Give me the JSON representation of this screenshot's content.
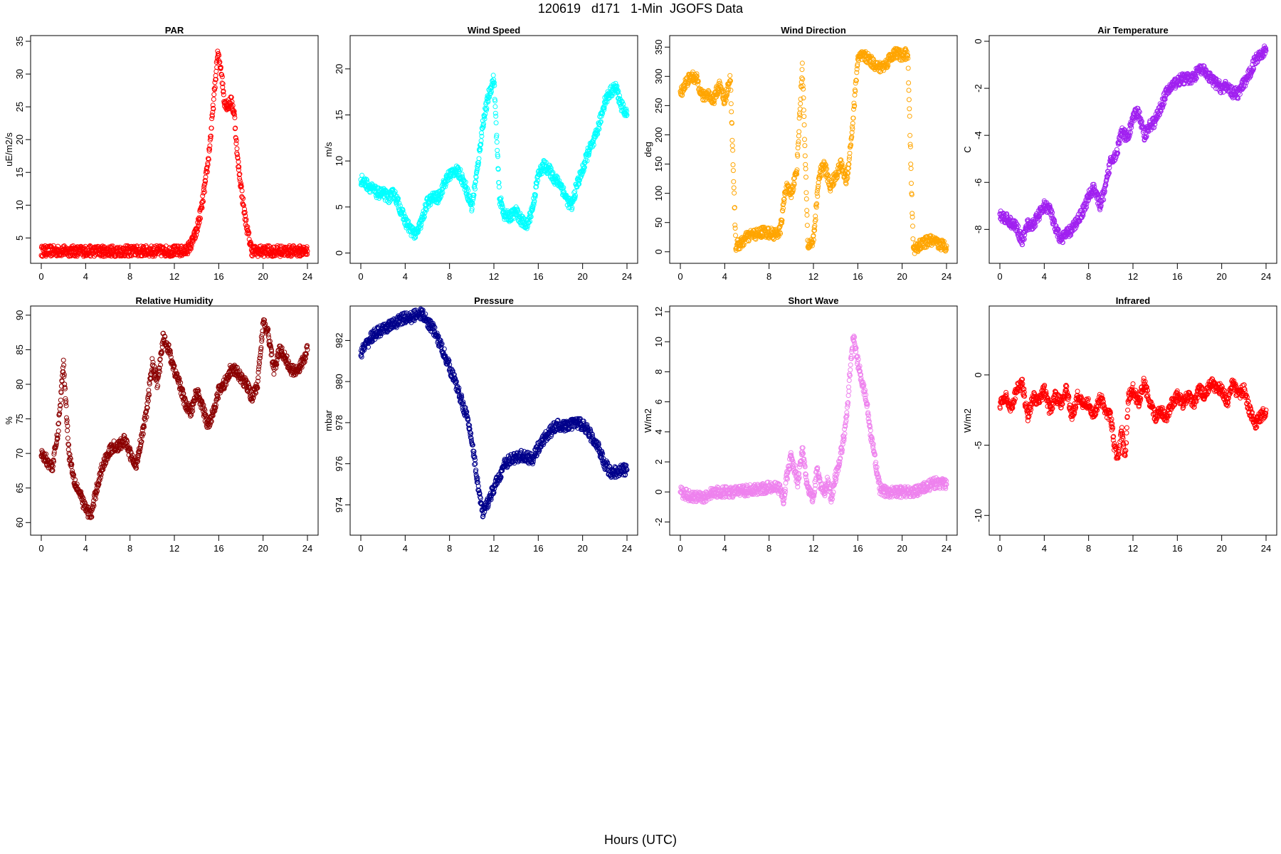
{
  "header": {
    "title": "120619   d171   1-Min  JGOFS Data"
  },
  "footer": {
    "xlabel": "Hours (UTC)"
  },
  "chart_data": [
    {
      "type": "scatter",
      "title": "PAR",
      "xlabel": "",
      "ylabel": "uE/m2/s",
      "color": "#ff0000",
      "xlim": [
        0,
        24
      ],
      "ylim": [
        2,
        35
      ],
      "xticks": [
        0,
        4,
        8,
        12,
        16,
        20,
        24
      ],
      "yticks": [
        5,
        10,
        15,
        20,
        25,
        30,
        35
      ],
      "x": [
        0,
        1,
        2,
        3,
        4,
        5,
        6,
        7,
        8,
        9,
        10,
        11,
        12,
        13,
        13.5,
        14,
        14.5,
        15,
        15.3,
        15.6,
        15.9,
        16.2,
        16.5,
        16.8,
        17.1,
        17.4,
        17.7,
        18,
        18.3,
        18.6,
        19,
        20,
        21,
        22,
        23,
        24
      ],
      "y": [
        3,
        3,
        3,
        3,
        3,
        3,
        3,
        3,
        3,
        3,
        3,
        3,
        3,
        3,
        4,
        6,
        10,
        16,
        21,
        27,
        33,
        31,
        26,
        25,
        26,
        24,
        17,
        13,
        9,
        6,
        3,
        3,
        3,
        3,
        3,
        3
      ]
    },
    {
      "type": "scatter",
      "title": "Wind Speed",
      "xlabel": "",
      "ylabel": "m/s",
      "color": "#00ffff",
      "xlim": [
        0,
        24
      ],
      "ylim": [
        -0.5,
        23
      ],
      "xticks": [
        0,
        4,
        8,
        12,
        16,
        20,
        24
      ],
      "yticks": [
        0,
        5,
        10,
        15,
        20
      ],
      "x": [
        0,
        0.5,
        1,
        1.5,
        2,
        2.5,
        3,
        3.5,
        4,
        4.5,
        5,
        5.5,
        6,
        6.5,
        7,
        7.5,
        8,
        8.5,
        9,
        9.5,
        10,
        10.5,
        11,
        11.5,
        12,
        12.5,
        13,
        13.5,
        14,
        14.5,
        15,
        15.5,
        16,
        16.5,
        17,
        17.5,
        18,
        18.5,
        19,
        19.5,
        20,
        20.5,
        21,
        21.5,
        22,
        22.5,
        23,
        23.5,
        24
      ],
      "y": [
        8,
        7.5,
        7,
        6.5,
        6.5,
        6,
        6.5,
        5,
        3.5,
        2.5,
        2,
        3.5,
        5.5,
        6,
        6,
        7.5,
        8.5,
        9,
        8.5,
        7,
        5,
        9,
        14,
        17,
        19,
        6,
        4,
        4,
        4.5,
        3.5,
        3,
        5,
        8.5,
        9.5,
        9,
        8,
        7.5,
        6,
        5,
        7.5,
        9,
        11,
        12,
        14,
        16.5,
        17.5,
        18,
        16,
        15
      ]
    },
    {
      "type": "scatter",
      "title": "Wind Direction",
      "xlabel": "",
      "ylabel": "deg",
      "color": "#ffa500",
      "xlim": [
        0,
        24
      ],
      "ylim": [
        -10,
        360
      ],
      "xticks": [
        0,
        4,
        8,
        12,
        16,
        20,
        24
      ],
      "yticks": [
        0,
        50,
        100,
        150,
        200,
        250,
        300,
        350
      ],
      "x": [
        0,
        0.5,
        1,
        1.5,
        2,
        2.5,
        3,
        3.5,
        4,
        4.5,
        5,
        5.5,
        6,
        6.5,
        7,
        7.5,
        8,
        8.5,
        9,
        9.5,
        10,
        10.5,
        11,
        11.5,
        12,
        12.5,
        13,
        13.5,
        14,
        14.5,
        15,
        15.5,
        16,
        16.5,
        17,
        17.5,
        18,
        18.5,
        19,
        19.5,
        20,
        20.5,
        21,
        21.5,
        22,
        22.5,
        23,
        23.5,
        24
      ],
      "y": [
        270,
        290,
        300,
        295,
        265,
        270,
        260,
        285,
        255,
        300,
        10,
        15,
        25,
        30,
        30,
        35,
        32,
        30,
        35,
        110,
        100,
        140,
        320,
        10,
        20,
        130,
        150,
        110,
        130,
        150,
        120,
        210,
        330,
        335,
        330,
        320,
        315,
        320,
        335,
        340,
        335,
        340,
        5,
        10,
        15,
        20,
        15,
        12,
        10
      ]
    },
    {
      "type": "scatter",
      "title": "Air Temperature",
      "xlabel": "",
      "ylabel": "C",
      "color": "#a020f0",
      "xlim": [
        0,
        24
      ],
      "ylim": [
        -9.2,
        0
      ],
      "xticks": [
        0,
        4,
        8,
        12,
        16,
        20,
        24
      ],
      "yticks": [
        0,
        -2,
        -4,
        -6,
        -8
      ],
      "x": [
        0,
        0.5,
        1,
        1.5,
        2,
        2.5,
        3,
        3.5,
        4,
        4.5,
        5,
        5.5,
        6,
        6.5,
        7,
        7.5,
        8,
        8.5,
        9,
        9.5,
        10,
        10.5,
        11,
        11.5,
        12,
        12.5,
        13,
        13.5,
        14,
        14.5,
        15,
        15.5,
        16,
        16.5,
        17,
        17.5,
        18,
        18.5,
        19,
        19.5,
        20,
        20.5,
        21,
        21.5,
        22,
        22.5,
        23,
        23.5,
        24
      ],
      "y": [
        -7.4,
        -7.5,
        -7.7,
        -7.9,
        -8.5,
        -7.8,
        -7.8,
        -7.4,
        -7.0,
        -7.1,
        -8.0,
        -8.4,
        -8.2,
        -8.0,
        -7.6,
        -7.2,
        -6.6,
        -6.2,
        -7.0,
        -6.3,
        -5.0,
        -4.8,
        -3.8,
        -4.2,
        -3.2,
        -3.0,
        -4.0,
        -3.6,
        -3.4,
        -2.8,
        -2.2,
        -1.9,
        -1.7,
        -1.6,
        -1.6,
        -1.5,
        -1.2,
        -1.3,
        -1.6,
        -1.8,
        -2.0,
        -1.9,
        -2.2,
        -2.2,
        -1.8,
        -1.4,
        -0.8,
        -0.5,
        -0.4
      ]
    },
    {
      "type": "scatter",
      "title": "Relative Humidity",
      "xlabel": "",
      "ylabel": "%",
      "color": "#8b0000",
      "xlim": [
        0,
        24
      ],
      "ylim": [
        59,
        90.5
      ],
      "xticks": [
        0,
        4,
        8,
        12,
        16,
        20,
        24
      ],
      "yticks": [
        60,
        65,
        70,
        75,
        80,
        85,
        90
      ],
      "x": [
        0,
        0.5,
        1,
        1.5,
        2,
        2.5,
        3,
        3.5,
        4,
        4.5,
        5,
        5.5,
        6,
        6.5,
        7,
        7.5,
        8,
        8.5,
        9,
        9.5,
        10,
        10.5,
        11,
        11.5,
        12,
        12.5,
        13,
        13.5,
        14,
        14.5,
        15,
        15.5,
        16,
        16.5,
        17,
        17.5,
        18,
        18.5,
        19,
        19.5,
        20,
        20.5,
        21,
        21.5,
        22,
        22.5,
        23,
        23.5,
        24
      ],
      "y": [
        70,
        69,
        68,
        73,
        83,
        70,
        66,
        64,
        62,
        61,
        65,
        68,
        70,
        71,
        71,
        72,
        70,
        68,
        72,
        76,
        83,
        80,
        87,
        85,
        82,
        80,
        77,
        76,
        79,
        77,
        74,
        76,
        79,
        80,
        82,
        82,
        81,
        80,
        78,
        80,
        89,
        87,
        82,
        85,
        84,
        82,
        82,
        83,
        85
      ]
    },
    {
      "type": "scatter",
      "title": "Pressure",
      "xlabel": "",
      "ylabel": "mbar",
      "color": "#00008b",
      "xlim": [
        0,
        24
      ],
      "ylim": [
        972.8,
        983.4
      ],
      "xticks": [
        0,
        4,
        8,
        12,
        16,
        20,
        24
      ],
      "yticks": [
        974,
        976,
        978,
        980,
        982
      ],
      "x": [
        0,
        0.5,
        1,
        1.5,
        2,
        2.5,
        3,
        3.5,
        4,
        4.5,
        5,
        5.5,
        6,
        6.5,
        7,
        7.5,
        8,
        8.5,
        9,
        9.5,
        10,
        10.5,
        11,
        11.5,
        12,
        12.5,
        13,
        13.5,
        14,
        14.5,
        15,
        15.5,
        16,
        16.5,
        17,
        17.5,
        18,
        18.5,
        19,
        19.5,
        20,
        20.5,
        21,
        21.5,
        22,
        22.5,
        23,
        23.5,
        24
      ],
      "y": [
        981.4,
        981.8,
        982.2,
        982.4,
        982.5,
        982.7,
        982.8,
        983.0,
        983.1,
        983.1,
        983.3,
        983.3,
        982.9,
        982.6,
        982.0,
        981.4,
        980.7,
        980.0,
        979.2,
        978.4,
        977.2,
        975.2,
        973.5,
        974.2,
        974.8,
        975.4,
        976.0,
        976.2,
        976.3,
        976.4,
        976.3,
        976.2,
        976.8,
        977.2,
        977.5,
        977.8,
        977.9,
        977.8,
        977.9,
        978.0,
        977.9,
        977.6,
        977.1,
        976.7,
        976.0,
        975.6,
        975.6,
        975.7,
        975.7
      ]
    },
    {
      "type": "scatter",
      "title": "Short Wave",
      "xlabel": "",
      "ylabel": "W/m2",
      "color": "#ee82ee",
      "xlim": [
        0,
        24
      ],
      "ylim": [
        -2.5,
        12
      ],
      "xticks": [
        0,
        4,
        8,
        12,
        16,
        20,
        24
      ],
      "yticks": [
        -2,
        0,
        2,
        4,
        6,
        8,
        10,
        12
      ],
      "x": [
        0,
        1,
        2,
        3,
        4,
        5,
        6,
        7,
        8,
        8.5,
        9,
        9.3,
        9.6,
        10,
        10.3,
        10.6,
        11,
        11.3,
        11.6,
        12,
        12.3,
        12.6,
        13,
        13.3,
        13.6,
        14,
        14.3,
        14.6,
        15,
        15.3,
        15.6,
        15.9,
        16.2,
        16.5,
        16.8,
        17.1,
        17.4,
        17.7,
        18,
        18.5,
        19,
        20,
        21,
        22,
        23,
        24
      ],
      "y": [
        0,
        -0.3,
        -0.4,
        0,
        0,
        0,
        0.1,
        0.2,
        0.3,
        0.4,
        0.2,
        -0.5,
        1,
        2.5,
        1.5,
        0.5,
        3,
        1,
        0,
        -0.5,
        1.5,
        0.5,
        0,
        0.8,
        -0.5,
        1,
        2,
        3,
        5,
        8,
        10.5,
        9,
        8,
        7,
        6,
        4,
        3,
        1.5,
        0.2,
        0,
        0,
        0,
        0,
        0.3,
        0.6,
        0.5
      ]
    },
    {
      "type": "scatter",
      "title": "Infrared",
      "xlabel": "",
      "ylabel": "W/m2",
      "color": "#ff0000",
      "xlim": [
        0,
        24
      ],
      "ylim": [
        -11,
        4.5
      ],
      "xticks": [
        0,
        4,
        8,
        12,
        16,
        20,
        24
      ],
      "yticks": [
        0,
        -5,
        -10
      ],
      "x": [
        0,
        0.5,
        1,
        1.5,
        2,
        2.5,
        3,
        3.5,
        4,
        4.5,
        5,
        5.5,
        6,
        6.5,
        7,
        7.5,
        8,
        8.5,
        9,
        9.5,
        10,
        10.3,
        10.6,
        11,
        11.3,
        11.6,
        12,
        12.5,
        13,
        13.5,
        14,
        14.5,
        15,
        15.5,
        16,
        16.5,
        17,
        17.5,
        18,
        18.5,
        19,
        19.5,
        20,
        20.5,
        21,
        21.5,
        22,
        22.5,
        23,
        23.5,
        24
      ],
      "y": [
        -2,
        -1.5,
        -2.5,
        -1,
        -0.5,
        -3,
        -1.5,
        -2,
        -1,
        -2.5,
        -1.5,
        -2,
        -1,
        -3,
        -1.5,
        -2,
        -2,
        -3,
        -1.5,
        -2.5,
        -3,
        -5,
        -6,
        -4,
        -6,
        -1.5,
        -1,
        -2,
        -0.5,
        -2,
        -3,
        -2.5,
        -3,
        -2,
        -1.5,
        -2,
        -1.5,
        -2,
        -1,
        -1.5,
        -0.5,
        -1,
        -1,
        -2,
        -0.5,
        -1.5,
        -1,
        -2.5,
        -3.5,
        -3,
        -2.5
      ]
    }
  ]
}
